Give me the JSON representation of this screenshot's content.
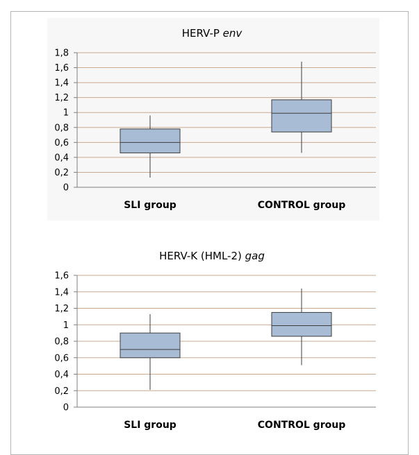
{
  "colors": {
    "box_fill": "#a9bcd6",
    "box_stroke": "#3d3d3d",
    "grid": "#c9a98f",
    "axis": "#7f7f7f",
    "whisker": "#3d3d3d"
  },
  "chart_data": [
    {
      "type": "box",
      "title": "HERV-P env",
      "title_plain": "HERV-P ",
      "title_italic": "env",
      "categories": [
        "SLI group",
        "CONTROL group"
      ],
      "y_tick_labels": [
        "0",
        "0,2",
        "0,4",
        "0,6",
        "0,8",
        "1",
        "1,2",
        "1,4",
        "1,6",
        "1,8"
      ],
      "ylim": [
        0,
        1.8
      ],
      "grid": true,
      "boxes": [
        {
          "category": "SLI group",
          "min": 0.13,
          "q1": 0.46,
          "median": 0.6,
          "q3": 0.78,
          "max": 0.96
        },
        {
          "category": "CONTROL group",
          "min": 0.46,
          "q1": 0.74,
          "median": 0.99,
          "q3": 1.17,
          "max": 1.68
        }
      ]
    },
    {
      "type": "box",
      "title": "HERV-K (HML-2) gag",
      "title_plain": "HERV-K (HML-2) ",
      "title_italic": "gag",
      "categories": [
        "SLI group",
        "CONTROL group"
      ],
      "y_tick_labels": [
        "0",
        "0,2",
        "0,4",
        "0,6",
        "0,8",
        "1",
        "1,2",
        "1,4",
        "1,6"
      ],
      "ylim": [
        0,
        1.6
      ],
      "grid": true,
      "boxes": [
        {
          "category": "SLI group",
          "min": 0.21,
          "q1": 0.6,
          "median": 0.7,
          "q3": 0.9,
          "max": 1.13
        },
        {
          "category": "CONTROL group",
          "min": 0.51,
          "q1": 0.86,
          "median": 0.99,
          "q3": 1.15,
          "max": 1.44
        }
      ]
    }
  ]
}
